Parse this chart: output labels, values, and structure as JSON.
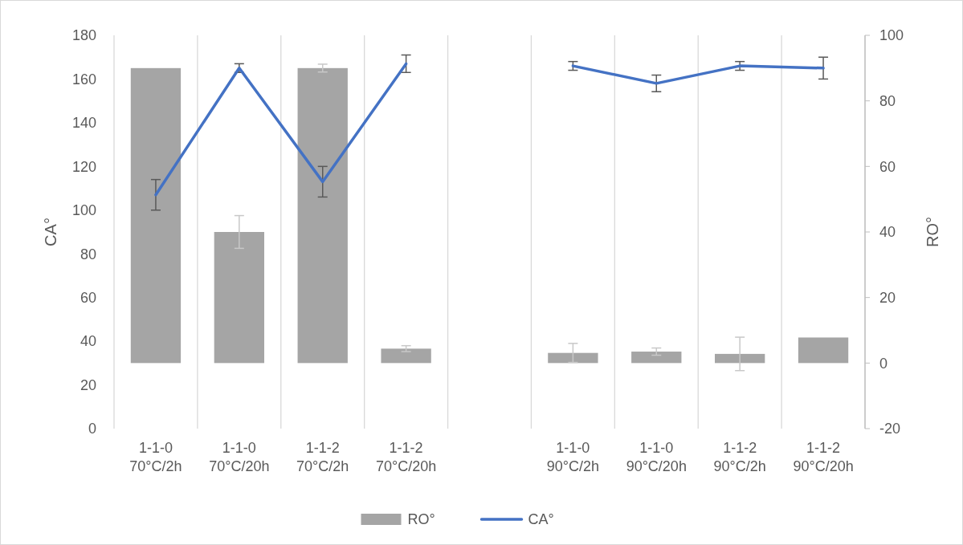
{
  "chart_data": {
    "type": "bar",
    "categories": [
      "1-1-0\n70°C/2h",
      "1-1-0\n70°C/20h",
      "1-1-2\n70°C/2h",
      "1-1-2\n70°C/20h",
      null,
      "1-1-0\n90°C/2h",
      "1-1-0\n90°C/20h",
      "1-1-2\n90°C/2h",
      "1-1-2\n90°C/20h"
    ],
    "series": [
      {
        "name": "RO°",
        "axis": "y2",
        "color": "#a5a5a5",
        "values": [
          90,
          40,
          90,
          4.4,
          null,
          3.1,
          3.5,
          2.8,
          7.8
        ],
        "errors": [
          null,
          5,
          1.2,
          0.9,
          null,
          2.9,
          1.1,
          5.1,
          null
        ]
      },
      {
        "name": "CA°",
        "type": "line",
        "color": "#4472c4",
        "values": [
          107,
          165,
          113,
          167,
          null,
          166,
          158,
          166,
          165
        ],
        "errors": [
          7,
          2,
          7,
          4,
          null,
          2,
          3.8,
          2,
          5
        ]
      }
    ],
    "ylabel": "CA°",
    "y2label": "RO°",
    "ylim": [
      0,
      180
    ],
    "yticks": [
      0,
      20,
      40,
      60,
      80,
      100,
      120,
      140,
      160,
      180
    ],
    "y2lim": [
      -20,
      100
    ],
    "y2ticks": [
      -20,
      0,
      20,
      40,
      60,
      80,
      100
    ],
    "grid": "x",
    "legend": "bottom"
  }
}
